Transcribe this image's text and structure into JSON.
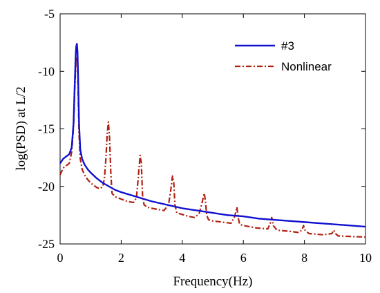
{
  "chart_data": {
    "type": "line",
    "title": "",
    "xlabel": "Frequency(Hz)",
    "ylabel": "log(PSD) at L/2",
    "xlim": [
      0,
      10
    ],
    "ylim": [
      -25,
      -5
    ],
    "xticks": [
      0,
      2,
      4,
      6,
      8,
      10
    ],
    "yticks": [
      -5,
      -10,
      -15,
      -20,
      -25
    ],
    "xtick_labels": [
      "0",
      "2",
      "4",
      "6",
      "8",
      "10"
    ],
    "ytick_labels": [
      "-5",
      "-10",
      "-15",
      "-20",
      "-25"
    ],
    "grid": false,
    "legend_position": "top-right",
    "series": [
      {
        "name": "#3",
        "color": "#1010d0",
        "style": "solid",
        "x": [
          0,
          0.1,
          0.2,
          0.3,
          0.38,
          0.44,
          0.48,
          0.51,
          0.53,
          0.55,
          0.57,
          0.59,
          0.62,
          0.66,
          0.72,
          0.8,
          0.9,
          1.0,
          1.2,
          1.4,
          1.6,
          1.8,
          2.0,
          2.5,
          3.0,
          3.5,
          4.0,
          4.5,
          5.0,
          5.5,
          6.0,
          6.5,
          7.0,
          7.5,
          8.0,
          8.5,
          9.0,
          9.5,
          10.0
        ],
        "y": [
          -18.0,
          -17.6,
          -17.4,
          -17.2,
          -16.6,
          -14.5,
          -11.0,
          -8.6,
          -7.8,
          -7.6,
          -8.3,
          -10.5,
          -14.5,
          -16.8,
          -17.6,
          -18.1,
          -18.5,
          -18.8,
          -19.3,
          -19.7,
          -20.0,
          -20.3,
          -20.5,
          -20.9,
          -21.3,
          -21.6,
          -21.9,
          -22.1,
          -22.3,
          -22.5,
          -22.6,
          -22.8,
          -22.9,
          -23.0,
          -23.1,
          -23.2,
          -23.3,
          -23.4,
          -23.5
        ]
      },
      {
        "name": "Nonlinear",
        "color": "#b02010",
        "style": "dashdot",
        "x": [
          0,
          0.1,
          0.2,
          0.3,
          0.38,
          0.44,
          0.48,
          0.51,
          0.53,
          0.55,
          0.57,
          0.59,
          0.62,
          0.66,
          0.72,
          0.8,
          0.9,
          1.0,
          1.1,
          1.2,
          1.3,
          1.4,
          1.45,
          1.5,
          1.54,
          1.58,
          1.62,
          1.66,
          1.7,
          1.8,
          1.9,
          2.0,
          2.2,
          2.4,
          2.5,
          2.56,
          2.62,
          2.66,
          2.7,
          2.75,
          2.85,
          3.0,
          3.2,
          3.4,
          3.55,
          3.62,
          3.68,
          3.72,
          3.76,
          3.82,
          3.95,
          4.2,
          4.4,
          4.55,
          4.65,
          4.72,
          4.76,
          4.8,
          4.86,
          5.0,
          5.3,
          5.6,
          5.72,
          5.79,
          5.83,
          5.88,
          6.0,
          6.4,
          6.8,
          6.88,
          6.93,
          6.98,
          7.1,
          7.5,
          7.8,
          7.92,
          7.97,
          8.02,
          8.15,
          8.6,
          8.9,
          8.96,
          9.02,
          9.1,
          9.5,
          10.0
        ],
        "y": [
          -19.0,
          -18.4,
          -18.2,
          -18.0,
          -17.0,
          -14.8,
          -11.6,
          -9.6,
          -8.9,
          -8.8,
          -9.6,
          -11.8,
          -15.4,
          -17.6,
          -18.5,
          -19.0,
          -19.4,
          -19.7,
          -19.9,
          -20.1,
          -20.2,
          -20.0,
          -19.3,
          -17.6,
          -15.5,
          -14.4,
          -15.8,
          -18.8,
          -20.6,
          -20.9,
          -21.0,
          -21.1,
          -21.3,
          -21.4,
          -21.0,
          -19.2,
          -17.3,
          -18.0,
          -20.8,
          -21.6,
          -21.8,
          -21.9,
          -22.0,
          -22.1,
          -21.6,
          -20.4,
          -19.1,
          -19.6,
          -21.6,
          -22.3,
          -22.4,
          -22.6,
          -22.7,
          -22.4,
          -21.4,
          -20.6,
          -21.3,
          -22.5,
          -22.9,
          -23.0,
          -23.1,
          -23.2,
          -22.6,
          -21.8,
          -22.7,
          -23.3,
          -23.4,
          -23.6,
          -23.7,
          -23.2,
          -22.7,
          -23.4,
          -23.8,
          -23.9,
          -24.0,
          -23.8,
          -23.4,
          -23.8,
          -24.1,
          -24.2,
          -24.1,
          -23.8,
          -24.1,
          -24.3,
          -24.35,
          -24.4
        ]
      }
    ]
  }
}
